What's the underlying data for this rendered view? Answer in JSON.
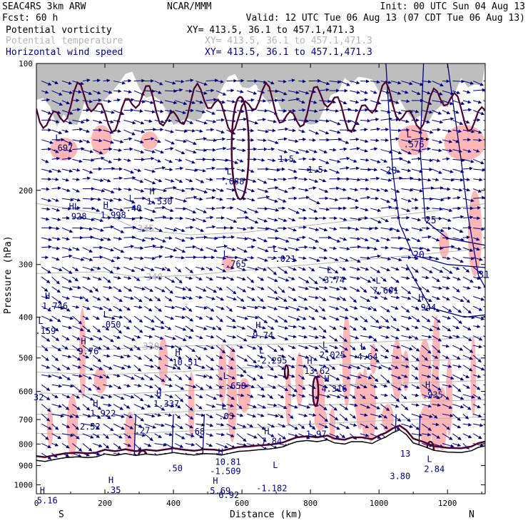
{
  "header": {
    "left_line1": "SEAC4RS  3km ARW",
    "left_line2": "Fcst:   60 h",
    "center": "NCAR/MMM",
    "init": "Init: 00 UTC Sun 04 Aug 13",
    "valid": "Valid: 12 UTC Tue 06 Aug 13 (07 CDT Tue 06 Aug 13)",
    "fields": [
      {
        "name": "Potential vorticity",
        "color": "#000000",
        "xy": "XY= 413.5, 36.1 to 457.1,471.3"
      },
      {
        "name": "Potential temperature",
        "color": "#b4b4b4",
        "xy": "XY= 413.5, 36.1 to 457.1,471.3"
      },
      {
        "name": "Horizontal wind speed",
        "color": "#000080",
        "xy": "XY= 413.5, 36.1 to 457.1,471.3"
      }
    ]
  },
  "colors": {
    "pv_fill": "#ffb6b6",
    "pv_contour": "#4a0030",
    "theta": "#b4b4b4",
    "wind": "#000080",
    "terrain": "#000000",
    "labels": "#000080"
  },
  "chart_data": {
    "type": "cross-section",
    "xlabel": "Distance (km)",
    "ylabel": "Pressure (hPa)",
    "xlim": [
      0,
      1310
    ],
    "ylim": [
      100,
      1050
    ],
    "y_log": true,
    "x_ticks": [
      0,
      200,
      400,
      600,
      800,
      1000,
      1200
    ],
    "y_ticks": [
      100,
      200,
      300,
      400,
      500,
      600,
      700,
      800,
      900,
      1000
    ],
    "end_labels": {
      "left": "S",
      "right": "N"
    },
    "terrain_surface": [
      [
        0,
        875
      ],
      [
        25,
        880
      ],
      [
        55,
        870
      ],
      [
        85,
        862
      ],
      [
        120,
        858
      ],
      [
        150,
        862
      ],
      [
        175,
        858
      ],
      [
        200,
        845
      ],
      [
        230,
        852
      ],
      [
        260,
        843
      ],
      [
        290,
        852
      ],
      [
        320,
        845
      ],
      [
        350,
        850
      ],
      [
        380,
        843
      ],
      [
        400,
        838
      ],
      [
        430,
        845
      ],
      [
        460,
        850
      ],
      [
        490,
        843
      ],
      [
        520,
        845
      ],
      [
        540,
        850
      ],
      [
        560,
        843
      ],
      [
        590,
        833
      ],
      [
        620,
        830
      ],
      [
        650,
        825
      ],
      [
        680,
        822
      ],
      [
        700,
        818
      ],
      [
        720,
        812
      ],
      [
        740,
        800
      ],
      [
        760,
        790
      ],
      [
        790,
        785
      ],
      [
        820,
        790
      ],
      [
        850,
        782
      ],
      [
        870,
        795
      ],
      [
        900,
        800
      ],
      [
        920,
        790
      ],
      [
        950,
        790
      ],
      [
        980,
        798
      ],
      [
        1000,
        782
      ],
      [
        1020,
        770
      ],
      [
        1040,
        752
      ],
      [
        1060,
        740
      ],
      [
        1080,
        760
      ],
      [
        1100,
        795
      ],
      [
        1130,
        810
      ],
      [
        1160,
        828
      ],
      [
        1200,
        836
      ],
      [
        1240,
        838
      ],
      [
        1270,
        830
      ],
      [
        1290,
        815
      ],
      [
        1310,
        808
      ]
    ],
    "theta_contours": [
      {
        "label": "345",
        "x": 295,
        "p": 247,
        "points": [
          [
            0,
            215
          ],
          [
            200,
            228
          ],
          [
            300,
            248
          ],
          [
            450,
            255
          ],
          [
            600,
            252
          ],
          [
            800,
            242
          ],
          [
            1000,
            232
          ],
          [
            1200,
            222
          ],
          [
            1310,
            215
          ]
        ]
      },
      {
        "label": "340",
        "x": 320,
        "p": 322,
        "points": [
          [
            0,
            315
          ],
          [
            200,
            312
          ],
          [
            300,
            322
          ],
          [
            450,
            318
          ],
          [
            600,
            310
          ],
          [
            800,
            300
          ],
          [
            1000,
            290
          ],
          [
            1200,
            280
          ],
          [
            1310,
            275
          ]
        ]
      },
      {
        "label": "330",
        "x": 310,
        "p": 470,
        "points": [
          [
            0,
            470
          ],
          [
            150,
            480
          ],
          [
            300,
            472
          ],
          [
            450,
            468
          ],
          [
            600,
            465
          ],
          [
            800,
            462
          ],
          [
            1000,
            458
          ],
          [
            1200,
            450
          ],
          [
            1310,
            445
          ]
        ]
      },
      {
        "label": "",
        "x": 0,
        "p": 0,
        "points": [
          [
            0,
            540
          ],
          [
            200,
            548
          ],
          [
            400,
            540
          ],
          [
            600,
            528
          ],
          [
            800,
            520
          ],
          [
            1000,
            515
          ],
          [
            1200,
            505
          ],
          [
            1310,
            500
          ]
        ]
      },
      {
        "label": "",
        "x": 0,
        "p": 0,
        "points": [
          [
            0,
            605
          ],
          [
            200,
            612
          ],
          [
            400,
            600
          ],
          [
            600,
            590
          ],
          [
            800,
            580
          ],
          [
            1000,
            575
          ],
          [
            1200,
            570
          ],
          [
            1310,
            565
          ]
        ]
      },
      {
        "label": "",
        "x": 0,
        "p": 0,
        "points": [
          [
            0,
            680
          ],
          [
            200,
            688
          ],
          [
            400,
            672
          ],
          [
            600,
            660
          ],
          [
            800,
            648
          ],
          [
            1000,
            640
          ],
          [
            1200,
            632
          ],
          [
            1310,
            628
          ]
        ]
      },
      {
        "label": "",
        "x": 0,
        "p": 0,
        "points": [
          [
            0,
            755
          ],
          [
            200,
            762
          ],
          [
            400,
            748
          ],
          [
            600,
            735
          ],
          [
            800,
            718
          ],
          [
            1000,
            705
          ],
          [
            1200,
            695
          ],
          [
            1310,
            690
          ]
        ]
      }
    ],
    "wind_speed_contours": [
      {
        "label": "20",
        "x": 1020,
        "p": 180
      },
      {
        "label": "25",
        "x": 1135,
        "p": 236
      },
      {
        "label": "20",
        "x": 1100,
        "p": 285
      },
      {
        "label": "31",
        "x": 1290,
        "p": 318
      }
    ],
    "extrema_labels": [
      {
        "type": "L",
        "value": ".697",
        "x": 55,
        "p": 158
      },
      {
        "type": "HL",
        "value": ".928",
        "x": 95,
        "p": 230
      },
      {
        "type": "H",
        "value": "1.998",
        "x": 195,
        "p": 228
      },
      {
        "type": "L",
        "value": ".40",
        "x": 270,
        "p": 220
      },
      {
        "type": "H",
        "value": "1.530",
        "x": 330,
        "p": 212
      },
      {
        "type": "L",
        "value": ".088",
        "x": 555,
        "p": 190
      },
      {
        "type": "",
        "value": "1.5",
        "x": 715,
        "p": 168
      },
      {
        "type": "",
        "value": "1.5",
        "x": 800,
        "p": 178
      },
      {
        "type": "L",
        "value": ".576",
        "x": 1080,
        "p": 155
      },
      {
        "type": "L",
        "value": "-.765",
        "x": 545,
        "p": 298
      },
      {
        "type": "L",
        "value": "-.021",
        "x": 690,
        "p": 290
      },
      {
        "type": "L",
        "value": "3.74",
        "x": 848,
        "p": 325
      },
      {
        "type": "L",
        "value": "7.601",
        "x": 990,
        "p": 345
      },
      {
        "type": "H",
        "value": "1.746",
        "x": 25,
        "p": 375
      },
      {
        "type": "H",
        "value": ".944",
        "x": 1115,
        "p": 378
      },
      {
        "type": "L",
        "value": ".159",
        "x": 5,
        "p": 430
      },
      {
        "type": "L",
        "value": ".050",
        "x": 195,
        "p": 415
      },
      {
        "type": "H",
        "value": "9.74",
        "x": 640,
        "p": 440
      },
      {
        "type": "H",
        "value": "9.76",
        "x": 130,
        "p": 480
      },
      {
        "type": "H",
        "value": "10.51",
        "x": 405,
        "p": 510
      },
      {
        "type": "L",
        "value": "-2.295",
        "x": 650,
        "p": 505
      },
      {
        "type": "L",
        "value": "2.025",
        "x": 835,
        "p": 490
      },
      {
        "type": "L",
        "value": "4.64",
        "x": 945,
        "p": 495
      },
      {
        "type": "H",
        "value": "13.62",
        "x": 790,
        "p": 535
      },
      {
        "type": "L",
        "value": "-.658",
        "x": 545,
        "p": 580
      },
      {
        "type": "H",
        "value": "4.316",
        "x": 840,
        "p": 590
      },
      {
        "type": "H",
        "value": ".935",
        "x": 1135,
        "p": 610
      },
      {
        "type": "",
        "value": "32",
        "x": 0,
        "p": 618
      },
      {
        "type": "H",
        "value": "1.337",
        "x": 350,
        "p": 640
      },
      {
        "type": "H",
        "value": "1.922",
        "x": 165,
        "p": 675
      },
      {
        "type": "L",
        "value": ".03",
        "x": 540,
        "p": 685
      },
      {
        "type": "",
        "value": "2.52",
        "x": 135,
        "p": 725
      },
      {
        "type": "",
        "value": ".27",
        "x": 295,
        "p": 740
      },
      {
        "type": "",
        "value": ".68",
        "x": 455,
        "p": 745
      },
      {
        "type": "L",
        "value": "1.97",
        "x": 795,
        "p": 755
      },
      {
        "type": "H",
        "value": "7.84",
        "x": 665,
        "p": 785
      },
      {
        "type": "",
        "value": "13",
        "x": 1070,
        "p": 840
      },
      {
        "type": "H",
        "value": "10.81",
        "x": 530,
        "p": 880
      },
      {
        "type": "",
        "value": ".50",
        "x": 390,
        "p": 910
      },
      {
        "type": "",
        "value": "-1.509",
        "x": 515,
        "p": 925
      },
      {
        "type": "L",
        "value": "2.84",
        "x": 1140,
        "p": 915
      },
      {
        "type": "L",
        "value": "",
        "x": 690,
        "p": 945
      },
      {
        "type": "",
        "value": "3.80",
        "x": 1040,
        "p": 950
      },
      {
        "type": "H",
        "value": ".35",
        "x": 210,
        "p": 1025
      },
      {
        "type": "H",
        "value": "5.69",
        "x": 515,
        "p": 1030
      },
      {
        "type": "",
        "value": "-1.182",
        "x": 650,
        "p": 1015
      },
      {
        "type": "",
        "value": "6.92",
        "x": 540,
        "p": 1055
      },
      {
        "type": "H",
        "value": "5.16",
        "x": 10,
        "p": 1085
      }
    ]
  }
}
